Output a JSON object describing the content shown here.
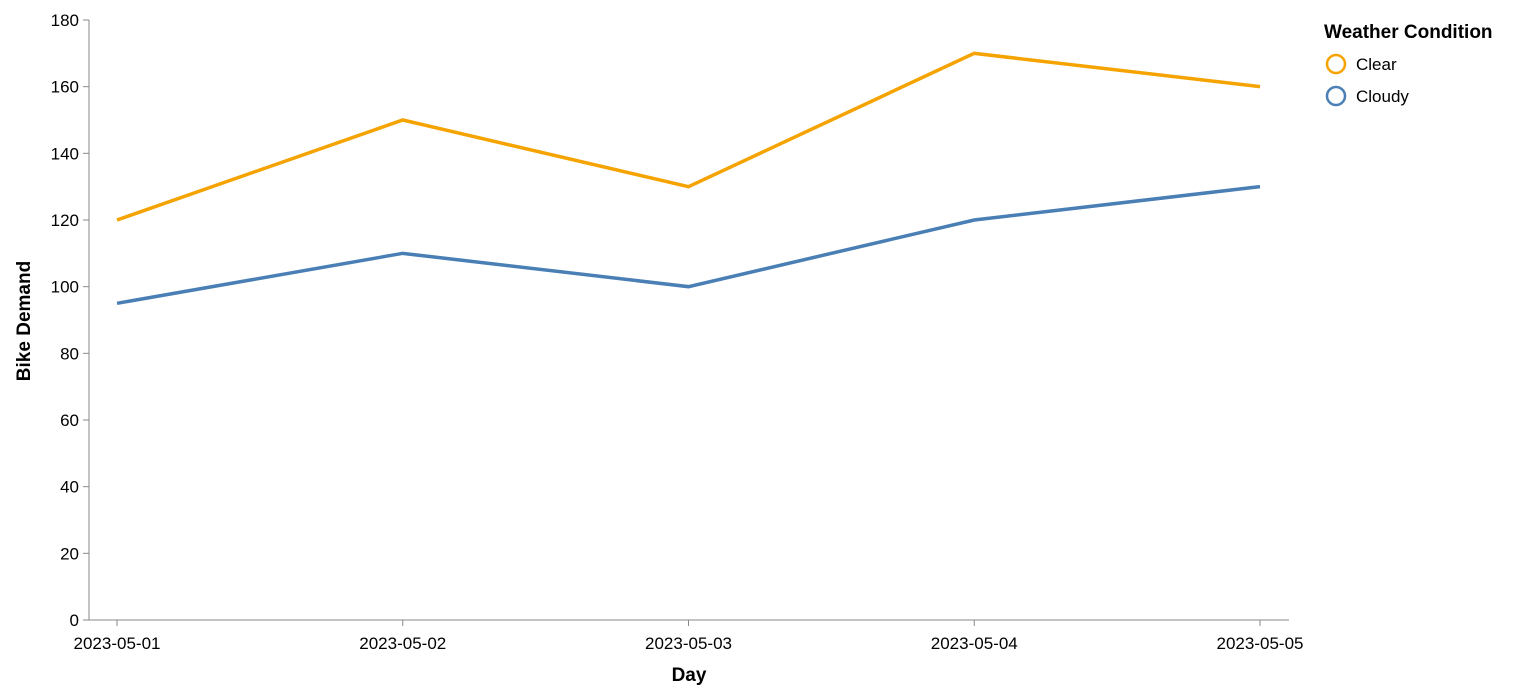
{
  "chart_data": {
    "type": "line",
    "title": "",
    "xlabel": "Day",
    "ylabel": "Bike Demand",
    "x": [
      "2023-05-01",
      "2023-05-02",
      "2023-05-03",
      "2023-05-04",
      "2023-05-05"
    ],
    "ylim": [
      0,
      180
    ],
    "yticks": [
      0,
      20,
      40,
      60,
      80,
      100,
      120,
      140,
      160,
      180
    ],
    "grid": false,
    "legend": {
      "title": "Weather Condition",
      "placement": "top-right"
    },
    "series": [
      {
        "name": "Clear",
        "color": "#F5A300",
        "values": [
          120,
          150,
          130,
          170,
          160
        ]
      },
      {
        "name": "Cloudy",
        "color": "#4A7FB5",
        "values": [
          95,
          110,
          100,
          120,
          130
        ]
      }
    ]
  }
}
